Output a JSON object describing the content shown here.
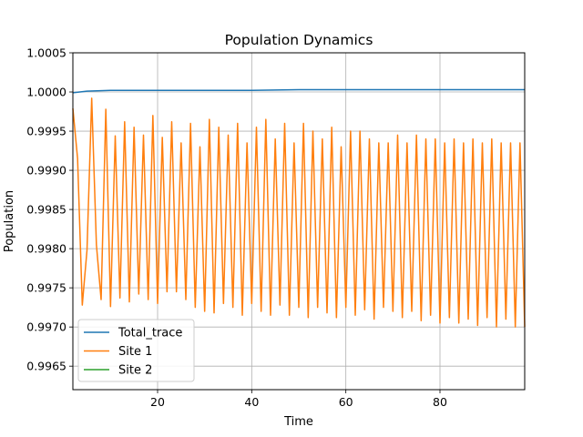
{
  "chart_data": {
    "type": "line",
    "title": "Population Dynamics",
    "xlabel": "Time",
    "ylabel": "Population",
    "xlim": [
      2,
      98
    ],
    "ylim": [
      0.9962,
      1.0005
    ],
    "xticks": [
      20,
      40,
      60,
      80
    ],
    "yticks": [
      0.9965,
      0.997,
      0.9975,
      0.998,
      0.9985,
      0.999,
      0.9995,
      1.0,
      1.0005
    ],
    "ytick_labels": [
      "0.9965",
      "0.9970",
      "0.9975",
      "0.9980",
      "0.9985",
      "0.9990",
      "0.9995",
      "1.0000",
      "1.0005"
    ],
    "grid": true,
    "legend_position": "lower-left",
    "series": [
      {
        "name": "Total_trace",
        "color": "#1f77b4",
        "points": [
          [
            2,
            0.99999
          ],
          [
            5,
            1.00001
          ],
          [
            10,
            1.00002
          ],
          [
            40,
            1.00002
          ],
          [
            50,
            1.00003
          ],
          [
            98,
            1.00003
          ]
        ]
      },
      {
        "name": "Site 1",
        "color": "#ff7f0e",
        "points": [
          [
            2,
            0.99979
          ],
          [
            3,
            0.99915
          ],
          [
            4,
            0.99728
          ],
          [
            5,
            0.99798
          ],
          [
            6,
            0.99992
          ],
          [
            7,
            0.99805
          ],
          [
            8,
            0.99735
          ],
          [
            9,
            0.99978
          ],
          [
            10,
            0.99726
          ],
          [
            11,
            0.99944
          ],
          [
            12,
            0.99737
          ],
          [
            13,
            0.99962
          ],
          [
            14,
            0.99732
          ],
          [
            15,
            0.99955
          ],
          [
            16,
            0.99742
          ],
          [
            17,
            0.99945
          ],
          [
            18,
            0.99735
          ],
          [
            19,
            0.9997
          ],
          [
            20,
            0.9973
          ],
          [
            21,
            0.99942
          ],
          [
            22,
            0.99745
          ],
          [
            23,
            0.99962
          ],
          [
            24,
            0.99745
          ],
          [
            25,
            0.99935
          ],
          [
            26,
            0.99735
          ],
          [
            27,
            0.9996
          ],
          [
            28,
            0.99725
          ],
          [
            29,
            0.9993
          ],
          [
            30,
            0.9972
          ],
          [
            31,
            0.99965
          ],
          [
            32,
            0.99718
          ],
          [
            33,
            0.99955
          ],
          [
            34,
            0.9973
          ],
          [
            35,
            0.99945
          ],
          [
            36,
            0.99725
          ],
          [
            37,
            0.9996
          ],
          [
            38,
            0.99715
          ],
          [
            39,
            0.99935
          ],
          [
            40,
            0.9973
          ],
          [
            41,
            0.99955
          ],
          [
            42,
            0.9972
          ],
          [
            43,
            0.99965
          ],
          [
            44,
            0.99715
          ],
          [
            45,
            0.9994
          ],
          [
            46,
            0.99728
          ],
          [
            47,
            0.9996
          ],
          [
            48,
            0.99715
          ],
          [
            49,
            0.99935
          ],
          [
            50,
            0.99725
          ],
          [
            51,
            0.9996
          ],
          [
            52,
            0.99712
          ],
          [
            53,
            0.9995
          ],
          [
            54,
            0.99725
          ],
          [
            55,
            0.9994
          ],
          [
            56,
            0.99718
          ],
          [
            57,
            0.99955
          ],
          [
            58,
            0.99712
          ],
          [
            59,
            0.9993
          ],
          [
            60,
            0.99725
          ],
          [
            61,
            0.9995
          ],
          [
            62,
            0.99715
          ],
          [
            63,
            0.9995
          ],
          [
            64,
            0.99722
          ],
          [
            65,
            0.9994
          ],
          [
            66,
            0.9971
          ],
          [
            67,
            0.99935
          ],
          [
            68,
            0.99725
          ],
          [
            69,
            0.99935
          ],
          [
            70,
            0.9972
          ],
          [
            71,
            0.99945
          ],
          [
            72,
            0.99712
          ],
          [
            73,
            0.99935
          ],
          [
            74,
            0.9972
          ],
          [
            75,
            0.99945
          ],
          [
            76,
            0.99708
          ],
          [
            77,
            0.9994
          ],
          [
            78,
            0.99715
          ],
          [
            79,
            0.9994
          ],
          [
            80,
            0.99705
          ],
          [
            81,
            0.99935
          ],
          [
            82,
            0.99712
          ],
          [
            83,
            0.9994
          ],
          [
            84,
            0.99705
          ],
          [
            85,
            0.99935
          ],
          [
            86,
            0.9971
          ],
          [
            87,
            0.9994
          ],
          [
            88,
            0.99702
          ],
          [
            89,
            0.99935
          ],
          [
            90,
            0.99712
          ],
          [
            91,
            0.9994
          ],
          [
            92,
            0.997
          ],
          [
            93,
            0.99935
          ],
          [
            94,
            0.9971
          ],
          [
            95,
            0.99935
          ],
          [
            96,
            0.997
          ],
          [
            97,
            0.99935
          ],
          [
            98,
            0.997
          ]
        ]
      },
      {
        "name": "Site 2",
        "color": "#2ca02c",
        "points": []
      }
    ]
  }
}
